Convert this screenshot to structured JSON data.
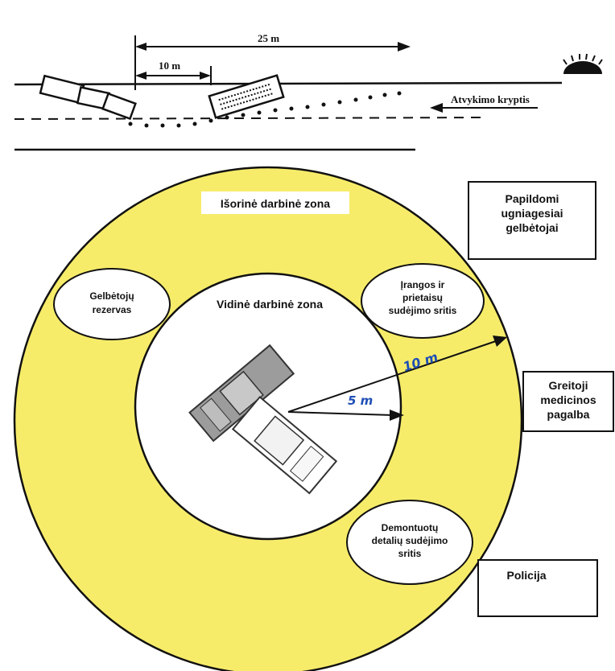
{
  "top_diagram": {
    "dim_25": "25 m",
    "dim_10": "10 m",
    "direction_label": "Atvykimo kryptis",
    "sun_icon": "sun-icon",
    "dot_color": "#111111"
  },
  "zones": {
    "outer_label": "Išorinė darbinė zona",
    "inner_label": "Vidinė darbinė zona",
    "reserve_label_1": "Gelbėtojų",
    "reserve_label_2": "rezervas",
    "equipment_label_1": "Įrangos ir",
    "equipment_label_2": "prietaisų",
    "equipment_label_3": "sudėjimo sritis",
    "parts_label_1": "Demontuotų",
    "parts_label_2": "detalių sudėjimo",
    "parts_label_3": "sritis",
    "radius_inner": "5 m",
    "radius_outer": "10 m",
    "outer_color": "#f7ec6a",
    "inner_color": "#ffffff",
    "radius_text_color": "#1f4fb5"
  },
  "boxes": {
    "firefighters_1": "Papildomi",
    "firefighters_2": "ugniagesiai",
    "firefighters_3": "gelbėtojai",
    "ambulance_1": "Greitoji",
    "ambulance_2": "medicinos",
    "ambulance_3": "pagalba",
    "police": "Policija"
  }
}
